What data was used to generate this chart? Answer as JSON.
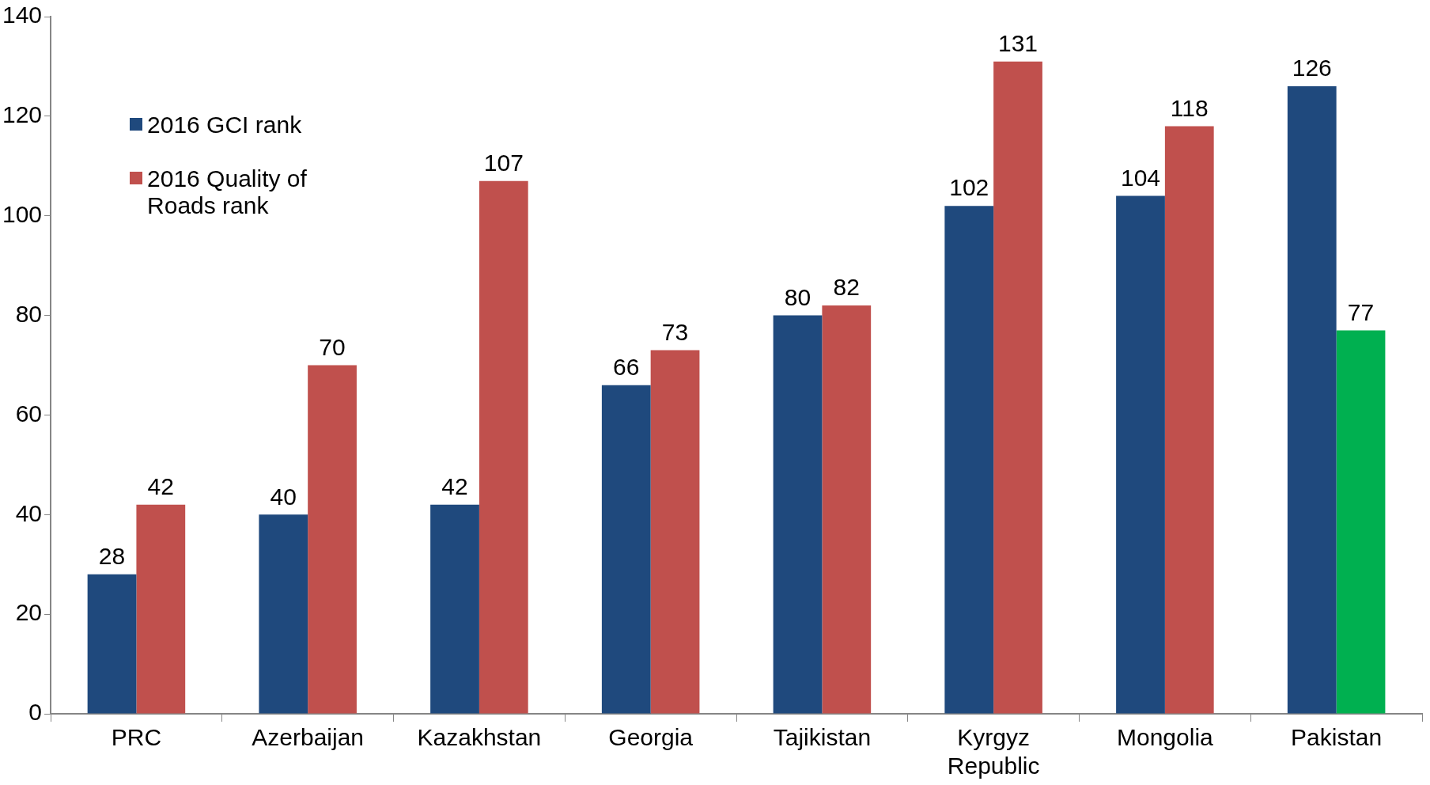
{
  "chart_data": {
    "type": "bar",
    "categories": [
      "PRC",
      "Azerbaijan",
      "Kazakhstan",
      "Georgia",
      "Tajikistan",
      "Kyrgyz Republic",
      "Mongolia",
      "Pakistan"
    ],
    "series": [
      {
        "name": "2016 GCI rank",
        "color": "#1f497d",
        "values": [
          28,
          40,
          42,
          66,
          80,
          102,
          104,
          126
        ]
      },
      {
        "name": "2016 Quality of Roads rank",
        "color": "#c0504d",
        "colors": [
          "#c0504d",
          "#c0504d",
          "#c0504d",
          "#c0504d",
          "#c0504d",
          "#c0504d",
          "#c0504d",
          "#00b050"
        ],
        "values": [
          42,
          70,
          107,
          73,
          82,
          131,
          118,
          77
        ]
      }
    ],
    "ylim": [
      0,
      140
    ],
    "yticks": [
      0,
      20,
      40,
      60,
      80,
      100,
      120,
      140
    ],
    "grid": false,
    "legend": "top left",
    "data_labels": true
  }
}
